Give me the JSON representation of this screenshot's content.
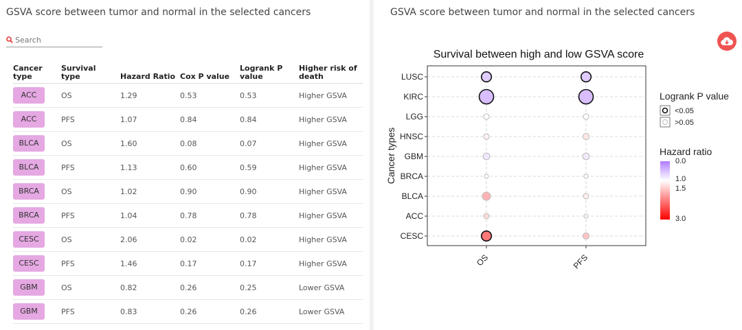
{
  "left": {
    "title": "GSVA score between tumor and normal in the selected cancers",
    "search": {
      "placeholder": "Search"
    },
    "columns": [
      "Cancer type",
      "Survival type",
      "Hazard Ratio",
      "Cox P value",
      "Logrank P value",
      "Higher risk of death"
    ],
    "rows": [
      {
        "cancer": "ACC",
        "survival": "OS",
        "hr": "1.29",
        "cox": "0.53",
        "logrank": "0.53",
        "risk": "Higher GSVA"
      },
      {
        "cancer": "ACC",
        "survival": "PFS",
        "hr": "1.07",
        "cox": "0.84",
        "logrank": "0.84",
        "risk": "Higher GSVA"
      },
      {
        "cancer": "BLCA",
        "survival": "OS",
        "hr": "1.60",
        "cox": "0.08",
        "logrank": "0.07",
        "risk": "Higher GSVA"
      },
      {
        "cancer": "BLCA",
        "survival": "PFS",
        "hr": "1.13",
        "cox": "0.60",
        "logrank": "0.59",
        "risk": "Higher GSVA"
      },
      {
        "cancer": "BRCA",
        "survival": "OS",
        "hr": "1.02",
        "cox": "0.90",
        "logrank": "0.90",
        "risk": "Higher GSVA"
      },
      {
        "cancer": "BRCA",
        "survival": "PFS",
        "hr": "1.04",
        "cox": "0.78",
        "logrank": "0.78",
        "risk": "Higher GSVA"
      },
      {
        "cancer": "CESC",
        "survival": "OS",
        "hr": "2.06",
        "cox": "0.02",
        "logrank": "0.02",
        "risk": "Higher GSVA"
      },
      {
        "cancer": "CESC",
        "survival": "PFS",
        "hr": "1.46",
        "cox": "0.17",
        "logrank": "0.17",
        "risk": "Higher GSVA"
      },
      {
        "cancer": "GBM",
        "survival": "OS",
        "hr": "0.82",
        "cox": "0.26",
        "logrank": "0.25",
        "risk": "Lower GSVA"
      },
      {
        "cancer": "GBM",
        "survival": "PFS",
        "hr": "0.83",
        "cox": "0.26",
        "logrank": "0.26",
        "risk": "Lower GSVA"
      }
    ]
  },
  "right": {
    "title": "GSVA score between tumor and normal in the selected cancers",
    "download_icon": "cloud-download-icon"
  },
  "chart_data": {
    "type": "scatter",
    "title": "Survival between high and low GSVA score",
    "xlabel": "",
    "ylabel": "Cancer types",
    "x_categories": [
      "OS",
      "PFS"
    ],
    "y_categories": [
      "CESC",
      "ACC",
      "BLCA",
      "BRCA",
      "GBM",
      "HNSC",
      "LGG",
      "KIRC",
      "LUSC"
    ],
    "points": [
      {
        "cancer": "LUSC",
        "type": "OS",
        "hr": 0.6,
        "significant": true,
        "size": 3
      },
      {
        "cancer": "LUSC",
        "type": "PFS",
        "hr": 0.6,
        "significant": true,
        "size": 3
      },
      {
        "cancer": "KIRC",
        "type": "OS",
        "hr": 0.5,
        "significant": true,
        "size": 5
      },
      {
        "cancer": "KIRC",
        "type": "PFS",
        "hr": 0.5,
        "significant": true,
        "size": 5
      },
      {
        "cancer": "LGG",
        "type": "OS",
        "hr": 1.0,
        "significant": false,
        "size": 1
      },
      {
        "cancer": "LGG",
        "type": "PFS",
        "hr": 1.0,
        "significant": false,
        "size": 1
      },
      {
        "cancer": "HNSC",
        "type": "OS",
        "hr": 1.1,
        "significant": false,
        "size": 1
      },
      {
        "cancer": "HNSC",
        "type": "PFS",
        "hr": 1.2,
        "significant": false,
        "size": 1.3
      },
      {
        "cancer": "GBM",
        "type": "OS",
        "hr": 0.82,
        "significant": false,
        "size": 1.5
      },
      {
        "cancer": "GBM",
        "type": "PFS",
        "hr": 0.83,
        "significant": false,
        "size": 1.5
      },
      {
        "cancer": "BRCA",
        "type": "OS",
        "hr": 1.02,
        "significant": false,
        "size": 0.3
      },
      {
        "cancer": "BRCA",
        "type": "PFS",
        "hr": 1.04,
        "significant": false,
        "size": 0.4
      },
      {
        "cancer": "BLCA",
        "type": "OS",
        "hr": 1.6,
        "significant": false,
        "size": 2.2
      },
      {
        "cancer": "BLCA",
        "type": "PFS",
        "hr": 1.13,
        "significant": false,
        "size": 0.9
      },
      {
        "cancer": "ACC",
        "type": "OS",
        "hr": 1.29,
        "significant": false,
        "size": 0.9
      },
      {
        "cancer": "ACC",
        "type": "PFS",
        "hr": 1.07,
        "significant": false,
        "size": 0.3
      },
      {
        "cancer": "CESC",
        "type": "OS",
        "hr": 2.06,
        "significant": true,
        "size": 3
      },
      {
        "cancer": "CESC",
        "type": "PFS",
        "hr": 1.46,
        "significant": false,
        "size": 1.3
      }
    ],
    "legend": {
      "logrank_title": "Logrank P value",
      "logrank_items": [
        "<0.05",
        ">0.05"
      ],
      "hr_title": "Hazard ratio",
      "hr_ticks": [
        "0.0",
        "1.0",
        "1.5",
        "3.0"
      ],
      "hr_gradient_colors": [
        "#b07cff",
        "#ffffff",
        "#ff0000"
      ]
    },
    "grid": true
  }
}
